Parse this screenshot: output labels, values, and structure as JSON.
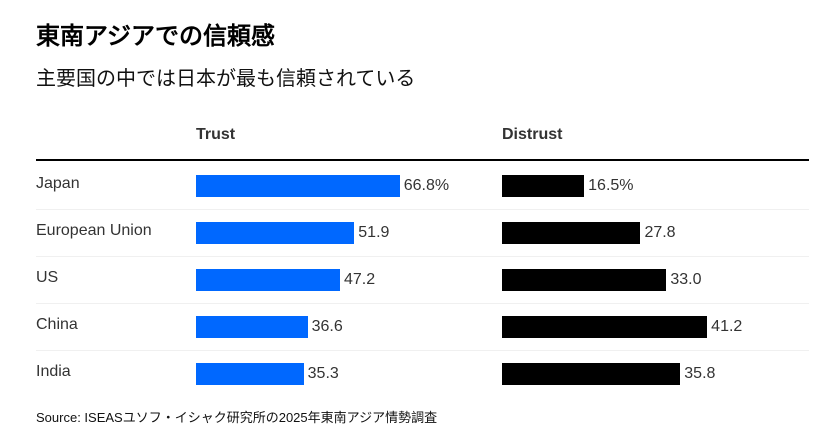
{
  "title": "東南アジアでの信頼感",
  "subtitle": "主要国の中では日本が最も信頼されている",
  "source": "Source: ISEASユソフ・イシャク研究所の2025年東南アジア情勢調査",
  "colors": {
    "trust": "#0068ff",
    "distrust": "#000000"
  },
  "chart_data": {
    "type": "bar",
    "title": "東南アジアでの信頼感",
    "subtitle": "主要国の中では日本が最も信頼されている",
    "categories": [
      "Japan",
      "European Union",
      "US",
      "China",
      "India"
    ],
    "series": [
      {
        "name": "Trust",
        "values": [
          66.8,
          51.9,
          47.2,
          36.6,
          35.3
        ],
        "labels": [
          "66.8%",
          "51.9",
          "47.2",
          "36.6",
          "35.3"
        ]
      },
      {
        "name": "Distrust",
        "values": [
          16.5,
          27.8,
          33.0,
          41.2,
          35.8
        ],
        "labels": [
          "16.5%",
          "27.8",
          "33.0",
          "41.2",
          "35.8"
        ]
      }
    ],
    "unit": "%"
  }
}
